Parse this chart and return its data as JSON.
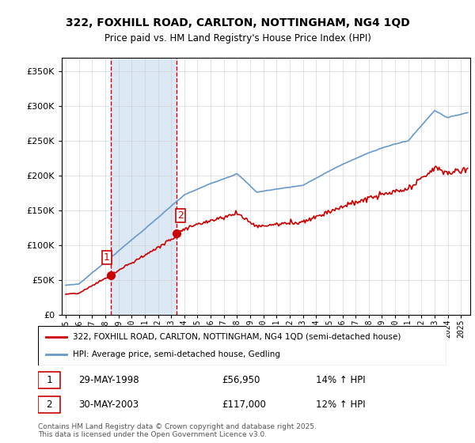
{
  "title": "322, FOXHILL ROAD, CARLTON, NOTTINGHAM, NG4 1QD",
  "subtitle": "Price paid vs. HM Land Registry's House Price Index (HPI)",
  "legend_line1": "322, FOXHILL ROAD, CARLTON, NOTTINGHAM, NG4 1QD (semi-detached house)",
  "legend_line2": "HPI: Average price, semi-detached house, Gedling",
  "sale1_label": "1",
  "sale1_date": "29-MAY-1998",
  "sale1_price": "£56,950",
  "sale1_hpi": "14% ↑ HPI",
  "sale2_label": "2",
  "sale2_date": "30-MAY-2003",
  "sale2_price": "£117,000",
  "sale2_hpi": "12% ↑ HPI",
  "copyright": "Contains HM Land Registry data © Crown copyright and database right 2025.\nThis data is licensed under the Open Government Licence v3.0.",
  "red_color": "#cc0000",
  "blue_color": "#6699cc",
  "shade_color": "#dde8f5",
  "grid_color": "#cccccc",
  "bg_color": "#ffffff",
  "ylim_min": 0,
  "ylim_max": 370000,
  "sale1_year": 1998.41,
  "sale1_value": 56950,
  "sale2_year": 2003.41,
  "sale2_value": 117000
}
